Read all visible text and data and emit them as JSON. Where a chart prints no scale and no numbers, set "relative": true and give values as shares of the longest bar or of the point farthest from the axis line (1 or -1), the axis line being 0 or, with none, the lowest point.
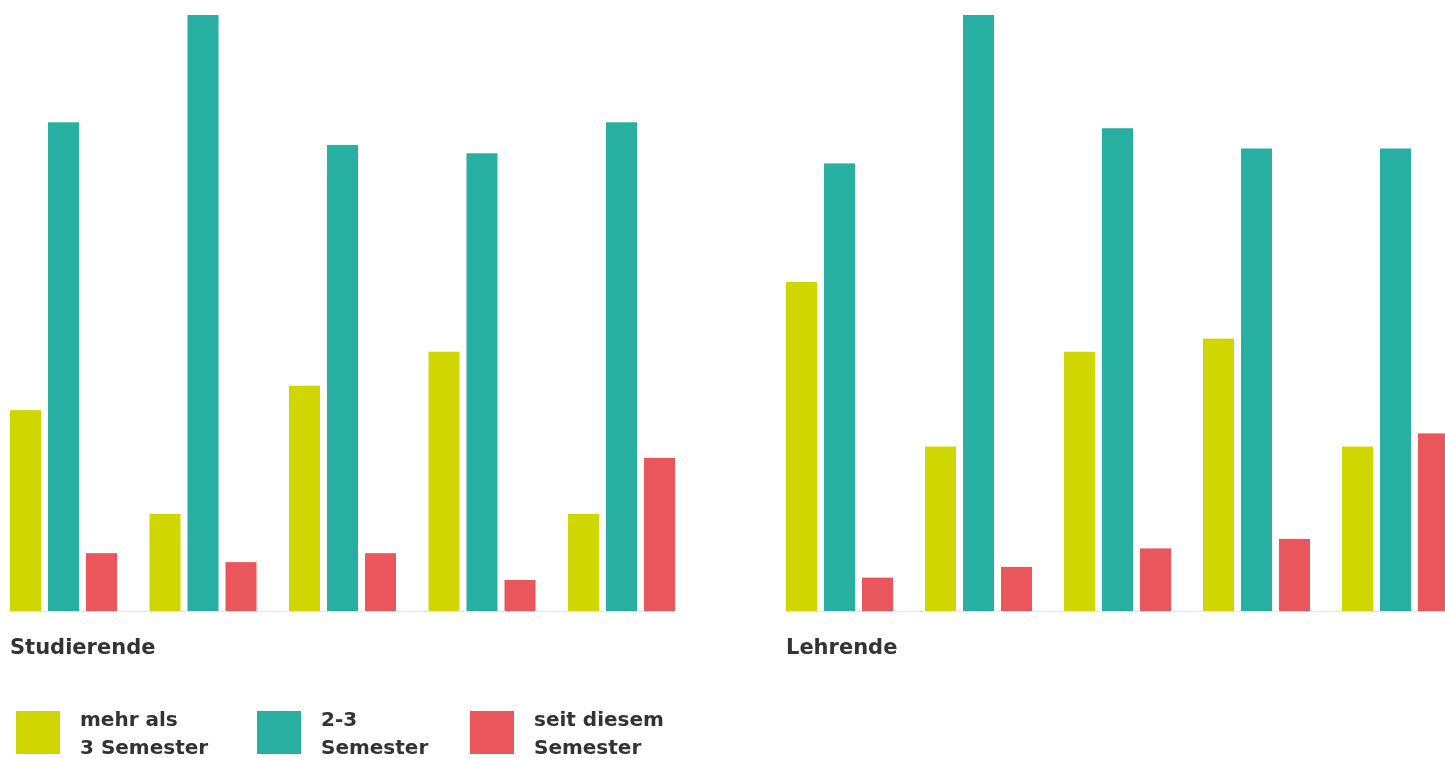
{
  "chart_data": [
    {
      "type": "bar",
      "relative": true,
      "xlabel": "Studierende",
      "categories": [
        null,
        null,
        null,
        null,
        null
      ],
      "legend": "bottom",
      "series": [
        {
          "name": "mehr als\n3 Semester",
          "color": "#cfd600",
          "values": [
            0.337,
            0.163,
            0.378,
            0.435,
            0.163
          ]
        },
        {
          "name": "2-3\nSemester",
          "color": "#27b0a1",
          "values": [
            0.82,
            1,
            0.782,
            0.768,
            0.82
          ]
        },
        {
          "name": "seit diesem\nSemester",
          "color": "#e9575d",
          "values": [
            0.097,
            0.082,
            0.097,
            0.052,
            0.257
          ]
        }
      ]
    },
    {
      "type": "bar",
      "relative": true,
      "xlabel": "Lehrende",
      "categories": [
        null,
        null,
        null,
        null,
        null
      ],
      "series": [
        {
          "color": "#cfd600",
          "values": [
            0.552,
            0.276,
            0.435,
            0.457,
            0.276
          ]
        },
        {
          "color": "#27b0a1",
          "values": [
            0.751,
            1,
            0.81,
            0.776,
            0.776
          ]
        },
        {
          "color": "#e9575d",
          "values": [
            0.056,
            0.074,
            0.105,
            0.121,
            0.298
          ]
        }
      ]
    }
  ]
}
